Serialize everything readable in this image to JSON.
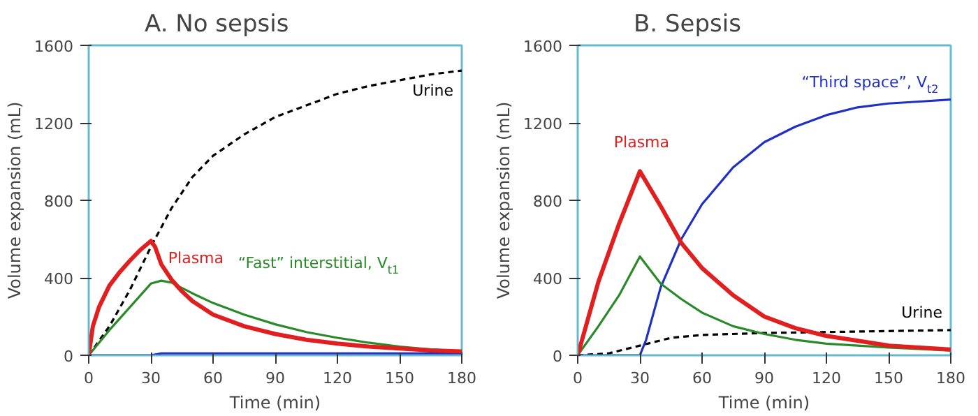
{
  "chart_data": [
    {
      "type": "line",
      "title": "A.  No sepsis",
      "xlabel": "Time (min)",
      "ylabel": "Volume expansion (mL)",
      "xlim": [
        0,
        180
      ],
      "xticks": [
        0,
        30,
        60,
        90,
        120,
        150,
        180
      ],
      "ylim": [
        0,
        1600
      ],
      "yticks": [
        0,
        400,
        800,
        1200,
        1600
      ],
      "grid": false,
      "series": [
        {
          "name": "Urine",
          "color": "#000000",
          "line_style": "dashed",
          "x": [
            0,
            10,
            20,
            30,
            40,
            50,
            60,
            75,
            90,
            105,
            120,
            135,
            150,
            165,
            180
          ],
          "values": [
            0,
            150,
            340,
            560,
            760,
            920,
            1030,
            1140,
            1230,
            1290,
            1350,
            1390,
            1420,
            1450,
            1470
          ]
        },
        {
          "color": "#2030c0",
          "x": [
            0,
            30,
            35,
            180
          ],
          "values": [
            0,
            0,
            10,
            10
          ]
        },
        {
          "name": "“Fast” interstitial, V$_{t1}$",
          "color": "#2a8a2a",
          "x": [
            0,
            10,
            20,
            30,
            35,
            40,
            50,
            60,
            75,
            90,
            105,
            120,
            135,
            150,
            165,
            180
          ],
          "values": [
            0,
            130,
            250,
            370,
            385,
            375,
            320,
            270,
            210,
            160,
            120,
            90,
            65,
            45,
            30,
            20
          ]
        },
        {
          "name": "Plasma",
          "color": "#e02020",
          "x": [
            0,
            2,
            5,
            10,
            15,
            20,
            25,
            30,
            32,
            35,
            40,
            45,
            50,
            60,
            75,
            90,
            105,
            120,
            135,
            150,
            165,
            180
          ],
          "values": [
            0,
            150,
            250,
            360,
            430,
            490,
            545,
            590,
            560,
            470,
            390,
            330,
            280,
            210,
            150,
            110,
            80,
            60,
            45,
            35,
            25,
            20
          ]
        }
      ]
    },
    {
      "type": "line",
      "title": "B.  Sepsis",
      "xlabel": "Time (min)",
      "ylabel": "Volume expansion (mL)",
      "xlim": [
        0,
        180
      ],
      "xticks": [
        0,
        30,
        60,
        90,
        120,
        150,
        180
      ],
      "ylim": [
        0,
        1600
      ],
      "yticks": [
        0,
        400,
        800,
        1200,
        1600
      ],
      "grid": false,
      "series": [
        {
          "name": "Urine",
          "color": "#000000",
          "line_style": "dashed",
          "x": [
            0,
            15,
            30,
            45,
            60,
            90,
            120,
            150,
            180
          ],
          "values": [
            0,
            10,
            50,
            90,
            105,
            115,
            120,
            125,
            130
          ]
        },
        {
          "name": "“Third space”, V$_{t2}$",
          "color": "#2030c0",
          "x": [
            0,
            30,
            33,
            40,
            50,
            60,
            75,
            90,
            105,
            120,
            135,
            150,
            165,
            180
          ],
          "values": [
            0,
            0,
            80,
            350,
            600,
            780,
            970,
            1100,
            1180,
            1240,
            1280,
            1300,
            1310,
            1320
          ]
        },
        {
          "color": "#2a8a2a",
          "x": [
            0,
            10,
            20,
            30,
            40,
            50,
            60,
            75,
            90,
            105,
            120,
            150,
            180
          ],
          "values": [
            0,
            150,
            310,
            510,
            370,
            290,
            220,
            150,
            110,
            80,
            60,
            40,
            25
          ]
        },
        {
          "name": "Plasma",
          "color": "#e02020",
          "x": [
            0,
            10,
            20,
            30,
            40,
            50,
            60,
            75,
            90,
            105,
            120,
            150,
            180
          ],
          "values": [
            0,
            380,
            680,
            950,
            770,
            580,
            450,
            310,
            200,
            140,
            100,
            50,
            30
          ]
        }
      ]
    }
  ]
}
